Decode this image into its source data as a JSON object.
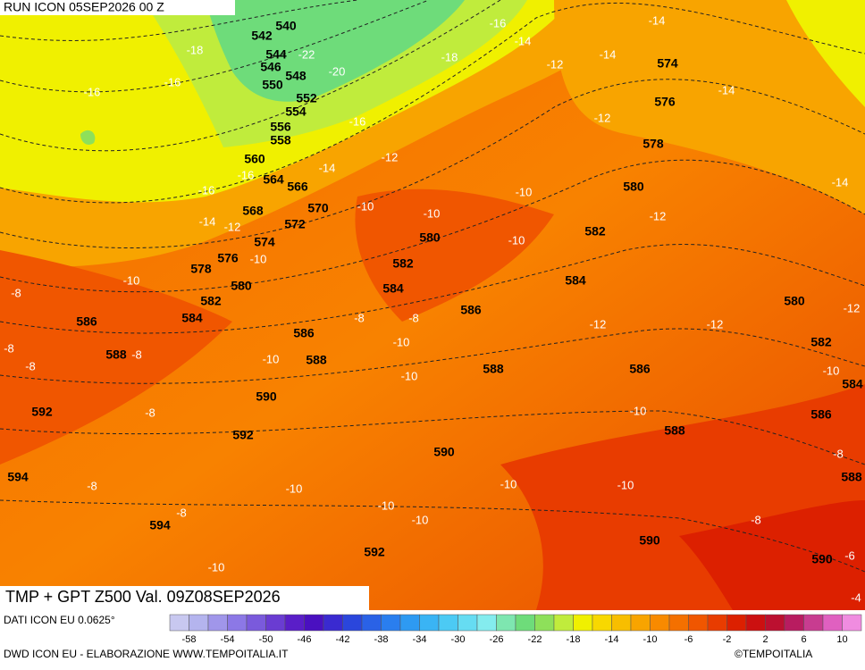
{
  "header": {
    "run": "RUN ICON 05SEP2026 00 Z"
  },
  "map": {
    "title": "TMP + GPT Z500 Val. 09Z08SEP2026",
    "geopotential_labels": [
      540,
      542,
      544,
      546,
      548,
      550,
      552,
      554,
      556,
      558,
      560,
      564,
      566,
      568,
      570,
      572,
      574,
      576,
      578,
      580,
      582,
      584,
      586,
      586,
      588,
      588,
      590,
      592,
      592,
      594,
      594,
      592,
      590,
      588,
      586,
      584,
      582,
      580,
      574,
      576,
      578,
      580,
      582,
      584,
      586,
      588,
      590,
      590,
      580,
      582,
      584,
      586,
      588
    ],
    "temperature_labels": [
      -16,
      -18,
      -16,
      -22,
      -20,
      -16,
      -18,
      -16,
      -14,
      -14,
      -12,
      -14,
      -14,
      -12,
      -12,
      -14,
      -16,
      -16,
      -14,
      -12,
      -10,
      -10,
      -10,
      -10,
      -10,
      -12,
      -14,
      -10,
      -8,
      -8,
      -8,
      -8,
      -8,
      -8,
      -10,
      -10,
      -10,
      -12,
      -12,
      -12,
      -10,
      -10,
      -8,
      -8,
      -8,
      -10,
      -10,
      -10,
      -10,
      -10,
      -8,
      -8,
      -6,
      -4,
      -10
    ]
  },
  "colorbar": {
    "source": "DATI ICON EU 0.0625°",
    "colors": [
      "#c8c8f0",
      "#b4b4ee",
      "#a096ea",
      "#8c78e6",
      "#7a5adc",
      "#6a3cd2",
      "#5a1ec8",
      "#4a10c0",
      "#3a2ad0",
      "#2a46dc",
      "#2a62e6",
      "#2a7eee",
      "#2e9af2",
      "#3ab4f4",
      "#4ccaf4",
      "#66dcf2",
      "#84ecee",
      "#7ee6b0",
      "#6edc7a",
      "#8ee05a",
      "#c0ec3c",
      "#f0f000",
      "#f8d800",
      "#f8be00",
      "#f8a400",
      "#f88a00",
      "#f47000",
      "#f05600",
      "#e83c00",
      "#dc2000",
      "#cc1010",
      "#bc1030",
      "#b81c60",
      "#c83c90",
      "#e060c0",
      "#f08ce0"
    ],
    "ticks": [
      -58,
      -54,
      -50,
      -46,
      -42,
      -38,
      -34,
      -30,
      -26,
      -22,
      -18,
      -14,
      -10,
      -6,
      -2,
      2,
      6,
      10
    ]
  },
  "footer": {
    "credit": "DWD ICON EU - ELABORAZIONE WWW.TEMPOITALIA.IT",
    "logo": "©TEMPOITALIA"
  }
}
